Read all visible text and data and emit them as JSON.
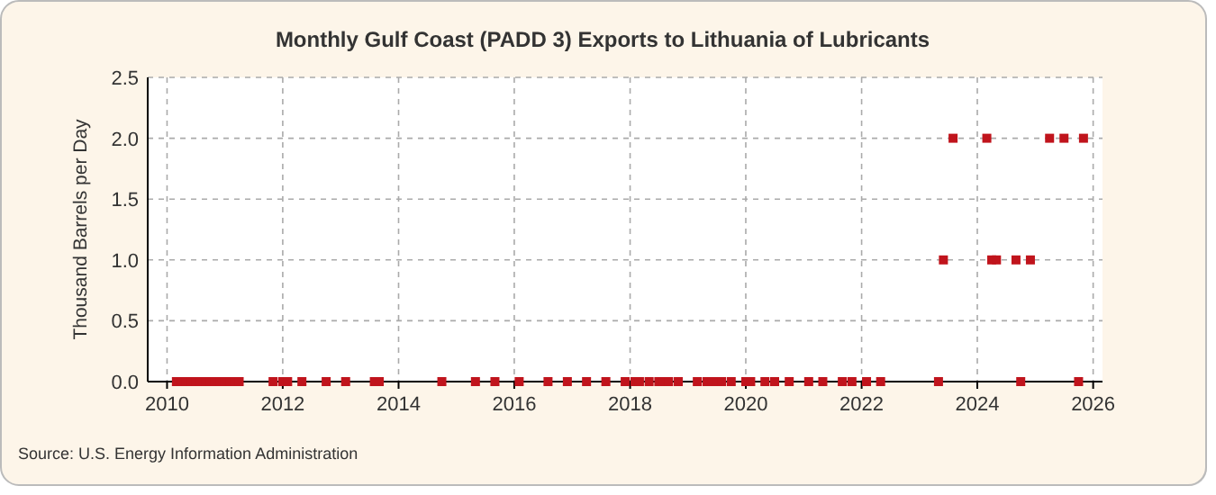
{
  "chart_data": {
    "type": "scatter",
    "title": "Monthly Gulf Coast (PADD 3) Exports to Lithuania of Lubricants",
    "ylabel": "Thousand Barrels per Day",
    "annotations": [
      "Source: U.S. Energy Information Administration"
    ],
    "x": [
      "2010-03",
      "2010-04",
      "2010-05",
      "2010-06",
      "2010-07",
      "2010-08",
      "2010-09",
      "2010-10",
      "2010-11",
      "2010-12",
      "2011-01",
      "2011-02",
      "2011-03",
      "2011-04",
      "2011-11",
      "2012-01",
      "2012-02",
      "2012-05",
      "2012-10",
      "2013-02",
      "2013-08",
      "2013-09",
      "2014-10",
      "2015-05",
      "2015-09",
      "2016-02",
      "2016-08",
      "2016-12",
      "2017-04",
      "2017-08",
      "2017-12",
      "2018-02",
      "2018-03",
      "2018-05",
      "2018-07",
      "2018-08",
      "2018-09",
      "2018-11",
      "2019-03",
      "2019-05",
      "2019-06",
      "2019-07",
      "2019-08",
      "2019-10",
      "2020-01",
      "2020-02",
      "2020-05",
      "2020-07",
      "2020-10",
      "2021-02",
      "2021-05",
      "2021-09",
      "2021-11",
      "2022-02",
      "2022-05",
      "2023-05",
      "2023-06",
      "2023-08",
      "2024-03",
      "2024-04",
      "2024-05",
      "2024-09",
      "2024-10",
      "2024-12",
      "2025-04",
      "2025-07",
      "2025-10",
      "2025-11"
    ],
    "series": [
      {
        "color": "#c0141c",
        "values": [
          0,
          0,
          0,
          0,
          0,
          0,
          0,
          0,
          0,
          0,
          0,
          0,
          0,
          0,
          0,
          0,
          0,
          0,
          0,
          0,
          0,
          0,
          0,
          0,
          0,
          0,
          0,
          0,
          0,
          0,
          0,
          0,
          0,
          0,
          0,
          0,
          0,
          0,
          0,
          0,
          0,
          0,
          0,
          0,
          0,
          0,
          0,
          0,
          0,
          0,
          0,
          0,
          0,
          0,
          0,
          0,
          1,
          2,
          2,
          1,
          1,
          1,
          0,
          1,
          2,
          2,
          0,
          2
        ]
      }
    ],
    "xlim": [
      "2009-09",
      "2026-03"
    ],
    "xticks": [
      "2010",
      "2012",
      "2014",
      "2016",
      "2018",
      "2020",
      "2022",
      "2024",
      "2026"
    ],
    "ylim": [
      0,
      2.5
    ],
    "yticks": [
      {
        "value": 0,
        "label": "0.0"
      },
      {
        "value": 0.5,
        "label": "0.5"
      },
      {
        "value": 1,
        "label": "1.0"
      },
      {
        "value": 1.5,
        "label": "1.5"
      },
      {
        "value": 2,
        "label": "2.0"
      },
      {
        "value": 2.5,
        "label": "2.5"
      }
    ],
    "grid": true,
    "marker": "square"
  }
}
